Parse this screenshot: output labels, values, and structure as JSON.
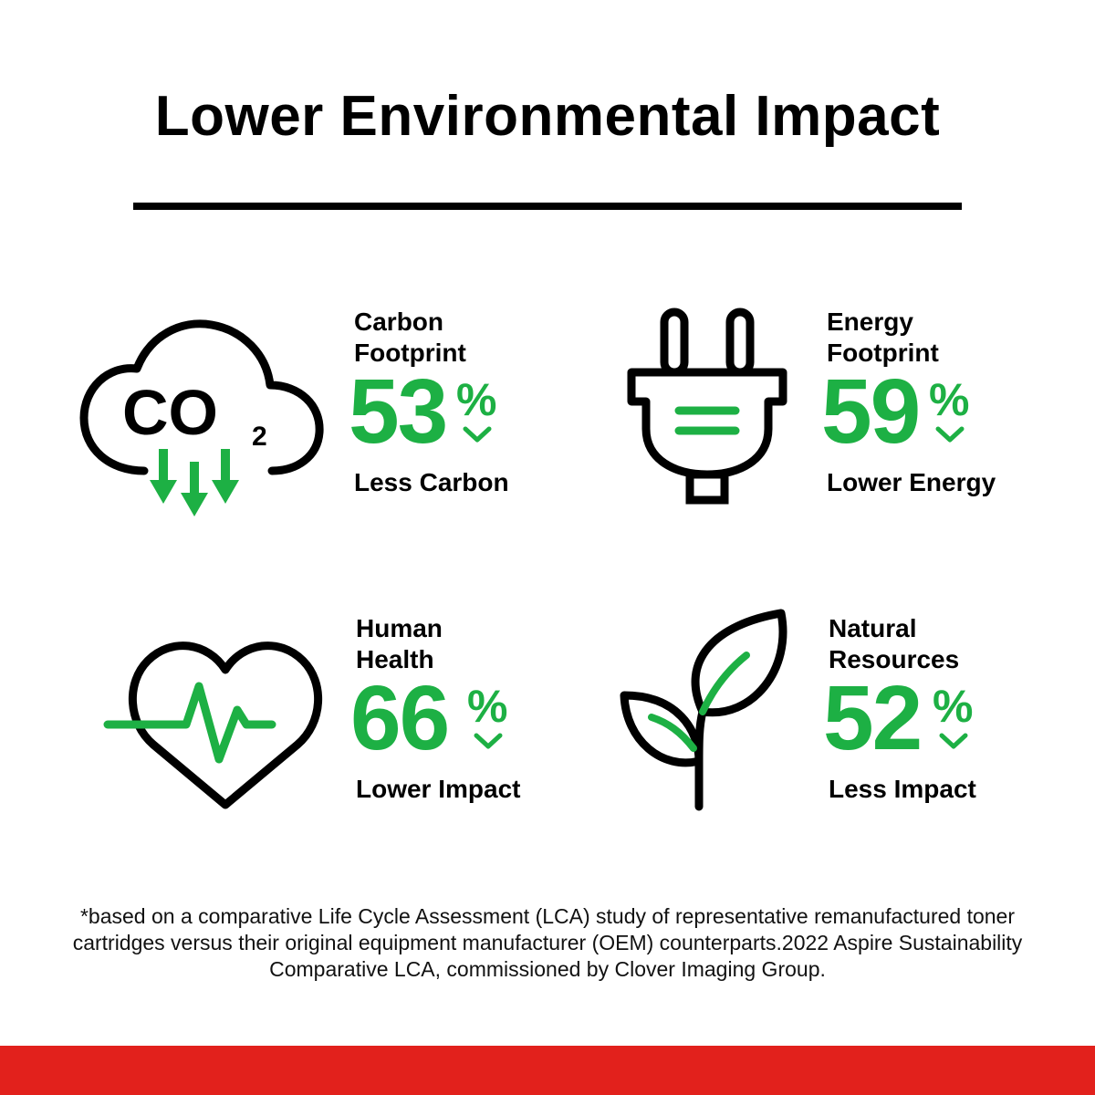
{
  "title": "Lower Environmental Impact",
  "colors": {
    "accent_green": "#1db044",
    "text_black": "#000000",
    "footer_red": "#e2211c"
  },
  "stats": [
    {
      "icon": "co2-cloud-icon",
      "icon_text": "CO",
      "icon_subscript": "2",
      "label_line1": "Carbon",
      "label_line2": "Footprint",
      "value": "53",
      "unit": "%",
      "description": "Less Carbon"
    },
    {
      "icon": "power-plug-icon",
      "label_line1": "Energy",
      "label_line2": "Footprint",
      "value": "59",
      "unit": "%",
      "description": "Lower Energy"
    },
    {
      "icon": "heart-pulse-icon",
      "label_line1": "Human",
      "label_line2": "Health",
      "value": "66",
      "unit": "%",
      "description": "Lower Impact"
    },
    {
      "icon": "leaf-plant-icon",
      "label_line1": "Natural",
      "label_line2": "Resources",
      "value": "52",
      "unit": "%",
      "description": "Less Impact"
    }
  ],
  "footnote": "*based on a comparative Life Cycle Assessment (LCA) study of representative remanufactured toner cartridges versus their original equipment manufacturer (OEM) counterparts.2022 Aspire Sustainability Comparative LCA, commissioned by Clover Imaging Group."
}
